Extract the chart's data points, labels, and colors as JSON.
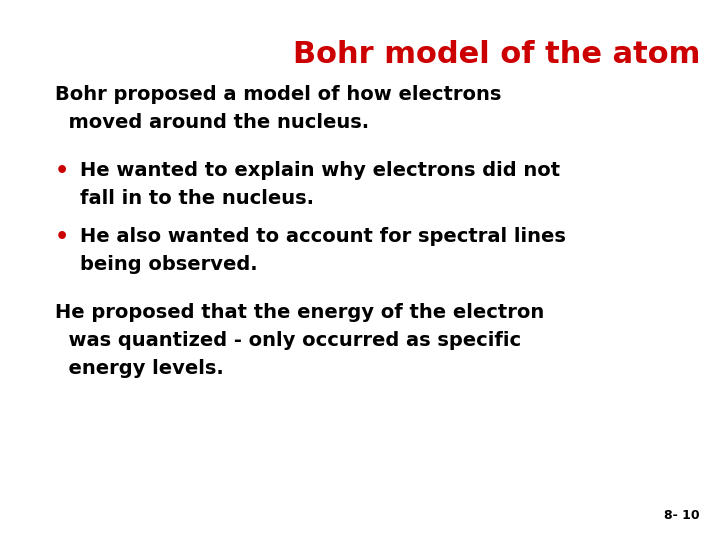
{
  "title": "Bohr model of the atom",
  "title_color": "#cc0000",
  "title_fontsize": 22,
  "background_color": "#ffffff",
  "text_color": "#000000",
  "bullet_color": "#cc0000",
  "font_family": "Arial",
  "slide_number": "8- 10",
  "body_fontsize": 14,
  "para1_line1": "Bohr proposed a model of how electrons",
  "para1_line2": "  moved around the nucleus.",
  "bullet1_line1": "He wanted to explain why electrons did not",
  "bullet1_line2": "fall in to the nucleus.",
  "bullet2_line1": "He also wanted to account for spectral lines",
  "bullet2_line2": "being observed.",
  "para2_line1": "He proposed that the energy of the electron",
  "para2_line2": "  was quantized - only occurred as specific",
  "para2_line3": "  energy levels."
}
